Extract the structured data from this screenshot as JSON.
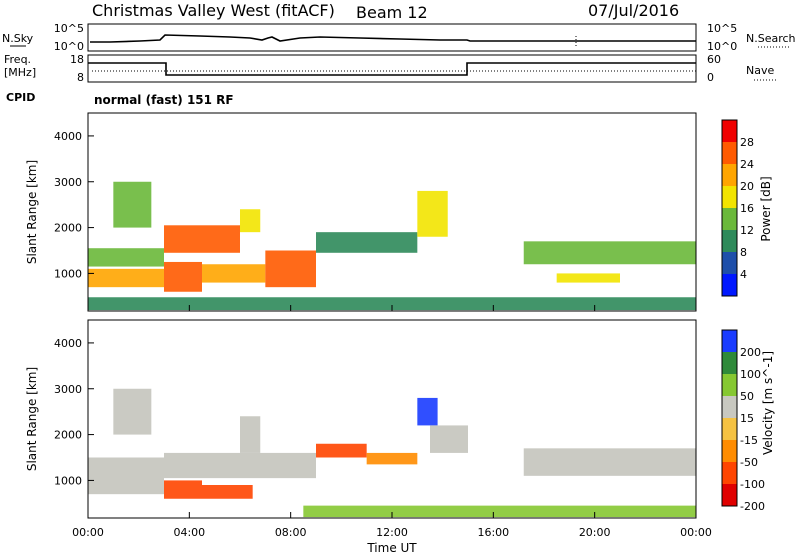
{
  "header": {
    "title": "Christmas Valley West (fitACF)",
    "beam": "Beam 12",
    "date": "07/Jul/2016"
  },
  "nsky_panel": {
    "label": "N.Sky",
    "left_ticks": [
      "10^5",
      "10^0"
    ],
    "right_label": "N.Search",
    "right_ticks": [
      "10^5",
      "10^0"
    ]
  },
  "freq_panel": {
    "label_line1": "Freq.",
    "label_line2": "[MHz]",
    "left_ticks": [
      "18",
      "8"
    ],
    "right_label": "Nave",
    "right_ticks": [
      "60",
      "0"
    ],
    "cpid_label": "CPID",
    "mode_text": "normal (fast) 151 RF"
  },
  "colors": {
    "power": [
      "#0018ff",
      "#1e4faa",
      "#2e8a5a",
      "#6ab83a",
      "#f2e400",
      "#ffa500",
      "#ff5a00",
      "#f00000"
    ],
    "velocity": [
      "#e00000",
      "#ff4500",
      "#ff8c00",
      "#f5c242",
      "#c8c8c0",
      "#86c832",
      "#2f8a3a",
      "#1a3cff"
    ],
    "ground_scatter": "#c4c4bc"
  },
  "chart_data": [
    {
      "type": "heatmap",
      "name": "power",
      "ylabel": "Slant Range [km]",
      "xlabel": "",
      "x_ticks": [
        "00:00",
        "04:00",
        "08:00",
        "12:00",
        "16:00",
        "20:00",
        "00:00"
      ],
      "y_ticks": [
        "1000",
        "2000",
        "3000",
        "4000"
      ],
      "x_range_hours": [
        0,
        24
      ],
      "y_range_km": [
        180,
        4500
      ],
      "colorbar": {
        "label": "Power [dB]",
        "ticks": [
          "28",
          "24",
          "20",
          "16",
          "12",
          "8",
          "4"
        ]
      },
      "regions": [
        {
          "t0": 0.0,
          "t1": 3.0,
          "r0": 700,
          "r1": 1100,
          "value": 24
        },
        {
          "t0": 0.0,
          "t1": 3.0,
          "r0": 1150,
          "r1": 1550,
          "value": 14
        },
        {
          "t0": 1.0,
          "t1": 2.5,
          "r0": 2000,
          "r1": 3000,
          "value": 16
        },
        {
          "t0": 3.0,
          "t1": 4.5,
          "r0": 600,
          "r1": 1250,
          "value": 26
        },
        {
          "t0": 3.0,
          "t1": 6.0,
          "r0": 1450,
          "r1": 2050,
          "value": 28
        },
        {
          "t0": 4.5,
          "t1": 7.0,
          "r0": 800,
          "r1": 1200,
          "value": 22
        },
        {
          "t0": 6.0,
          "t1": 6.8,
          "r0": 1900,
          "r1": 2400,
          "value": 20
        },
        {
          "t0": 7.0,
          "t1": 9.0,
          "r0": 700,
          "r1": 1500,
          "value": 26
        },
        {
          "t0": 9.0,
          "t1": 13.0,
          "r0": 1450,
          "r1": 1900,
          "value": 10
        },
        {
          "t0": 13.0,
          "t1": 14.2,
          "r0": 1800,
          "r1": 2800,
          "value": 18
        },
        {
          "t0": 17.2,
          "t1": 24.0,
          "r0": 1200,
          "r1": 1700,
          "value": 14
        },
        {
          "t0": 18.5,
          "t1": 21.0,
          "r0": 800,
          "r1": 1000,
          "value": 20
        },
        {
          "t0": 0.0,
          "t1": 24.0,
          "r0": 200,
          "r1": 480,
          "value": 12
        }
      ]
    },
    {
      "type": "heatmap",
      "name": "velocity",
      "ylabel": "Slant Range [km]",
      "xlabel": "Time UT",
      "x_ticks": [
        "00:00",
        "04:00",
        "08:00",
        "12:00",
        "16:00",
        "20:00",
        "00:00"
      ],
      "y_ticks": [
        "1000",
        "2000",
        "3000",
        "4000"
      ],
      "x_range_hours": [
        0,
        24
      ],
      "y_range_km": [
        180,
        4500
      ],
      "colorbar": {
        "label": "Velocity [m s^-1]",
        "ticks": [
          "200",
          "100",
          "50",
          "15",
          "-15",
          "-50",
          "-100",
          "-200"
        ]
      },
      "regions": [
        {
          "t0": 0.0,
          "t1": 3.0,
          "r0": 700,
          "r1": 1500,
          "value": 0
        },
        {
          "t0": 1.0,
          "t1": 2.5,
          "r0": 2000,
          "r1": 3000,
          "value": 0
        },
        {
          "t0": 3.0,
          "t1": 4.5,
          "r0": 600,
          "r1": 1000,
          "value": -180
        },
        {
          "t0": 3.0,
          "t1": 9.0,
          "r0": 1050,
          "r1": 1600,
          "value": 0
        },
        {
          "t0": 4.5,
          "t1": 6.5,
          "r0": 600,
          "r1": 900,
          "value": -120
        },
        {
          "t0": 6.0,
          "t1": 6.8,
          "r0": 1600,
          "r1": 2400,
          "value": 0
        },
        {
          "t0": 9.0,
          "t1": 11.0,
          "r0": 1500,
          "r1": 1800,
          "value": -180
        },
        {
          "t0": 11.0,
          "t1": 13.0,
          "r0": 1350,
          "r1": 1600,
          "value": -70
        },
        {
          "t0": 13.0,
          "t1": 13.8,
          "r0": 2200,
          "r1": 2800,
          "value": 200
        },
        {
          "t0": 13.5,
          "t1": 15.0,
          "r0": 1600,
          "r1": 2200,
          "value": 0
        },
        {
          "t0": 17.2,
          "t1": 24.0,
          "r0": 1100,
          "r1": 1700,
          "value": 0
        },
        {
          "t0": 8.5,
          "t1": 24.0,
          "r0": 200,
          "r1": 450,
          "value": 30
        }
      ]
    }
  ]
}
